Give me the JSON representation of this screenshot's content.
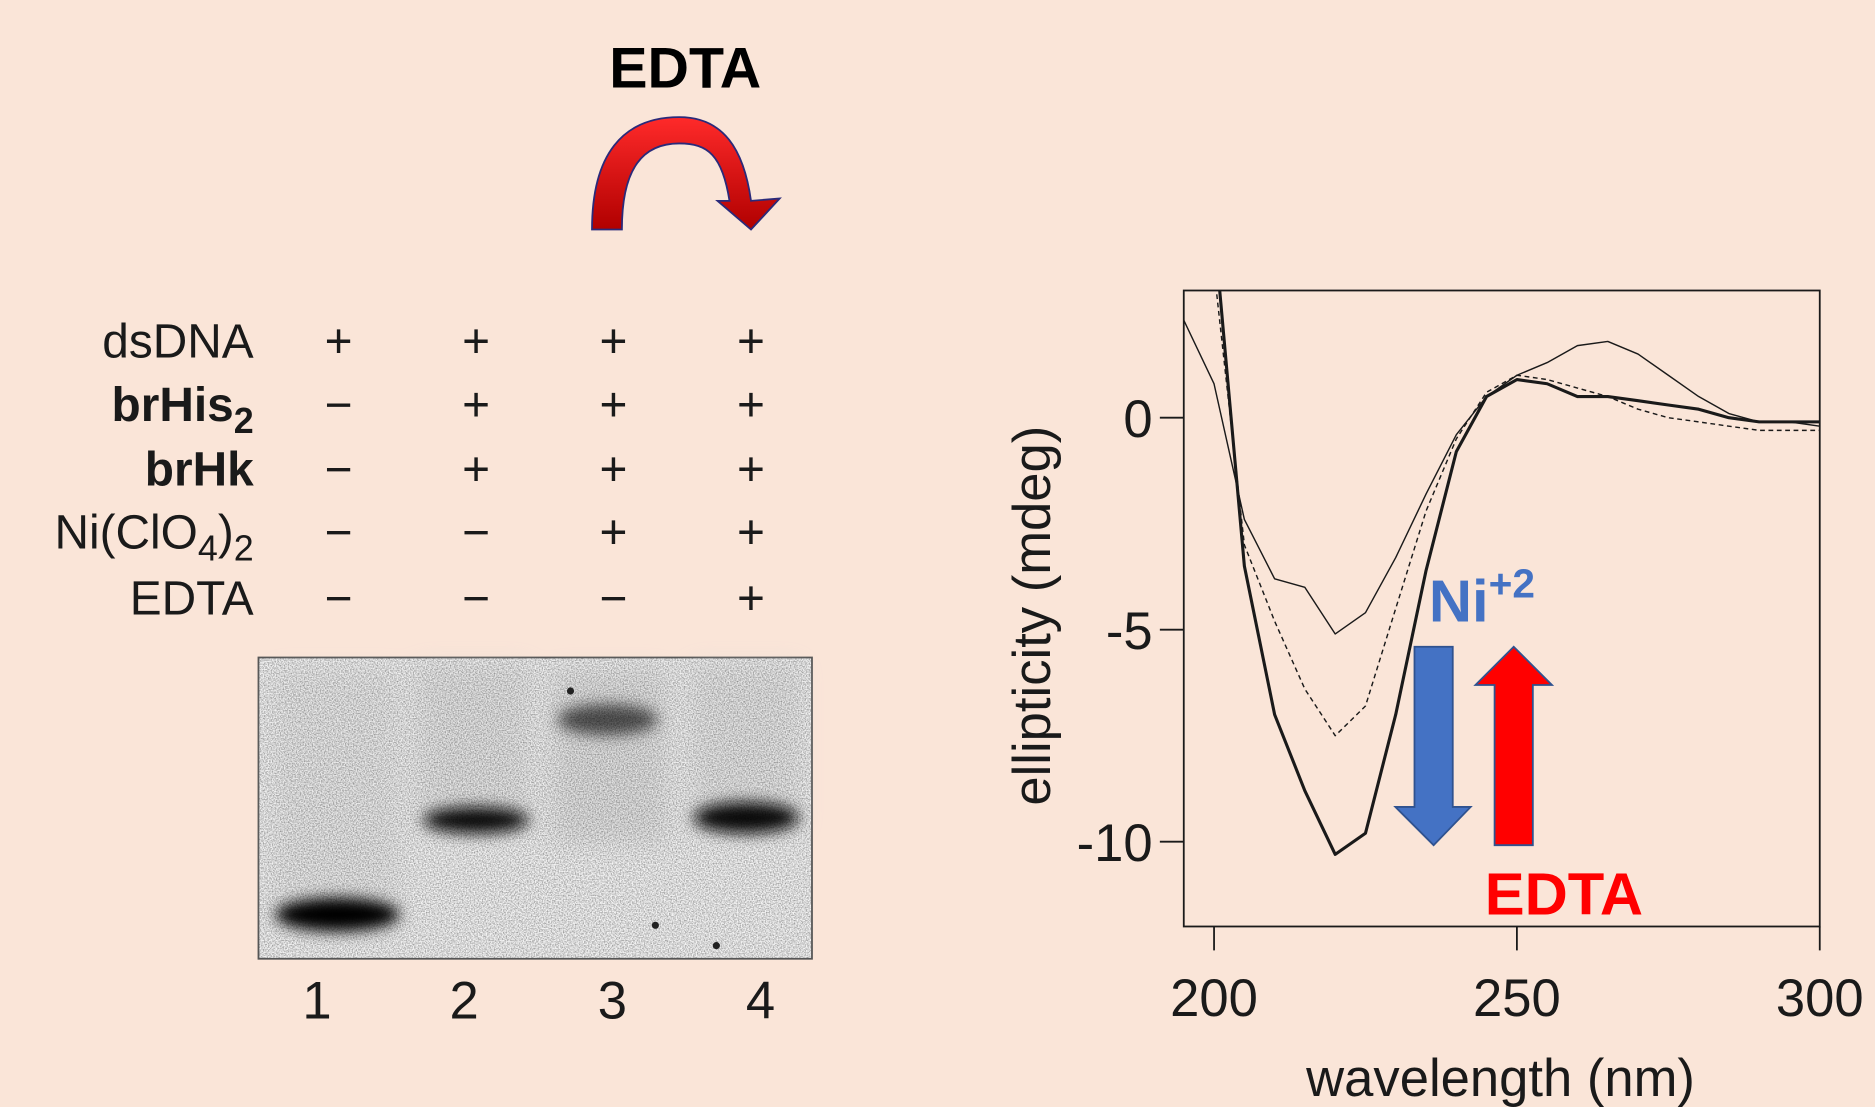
{
  "gel": {
    "header": "EDTA",
    "rows": [
      {
        "label": [
          {
            "text": "dsDNA"
          }
        ],
        "bold": false,
        "lanes": [
          "+",
          "+",
          "+",
          "+"
        ]
      },
      {
        "label": [
          {
            "text": "brHis"
          },
          {
            "text": "2",
            "sub": true
          }
        ],
        "bold": true,
        "lanes": [
          "−",
          "+",
          "+",
          "+"
        ]
      },
      {
        "label": [
          {
            "text": "brHk"
          }
        ],
        "bold": true,
        "lanes": [
          "−",
          "+",
          "+",
          "+"
        ]
      },
      {
        "label": [
          {
            "text": "Ni(ClO"
          },
          {
            "text": "4",
            "sub": true
          },
          {
            "text": ")"
          },
          {
            "text": "2",
            "sub": true
          }
        ],
        "bold": false,
        "lanes": [
          "−",
          "−",
          "+",
          "+"
        ]
      },
      {
        "label": [
          {
            "text": "EDTA"
          }
        ],
        "bold": false,
        "lanes": [
          "−",
          "−",
          "−",
          "+"
        ]
      }
    ],
    "lane_numbers": [
      "1",
      "2",
      "3",
      "4"
    ]
  },
  "chart_data": {
    "type": "line",
    "x_label": "wavelength (nm)",
    "y_label": "ellipticity (mdeg)",
    "xlim": [
      195,
      300
    ],
    "ylim": [
      -12,
      3
    ],
    "xticks": [
      200,
      250,
      300
    ],
    "yticks": [
      0,
      -5,
      -10
    ],
    "grid": false,
    "x": [
      195,
      200,
      205,
      210,
      215,
      220,
      225,
      230,
      235,
      240,
      245,
      250,
      255,
      260,
      265,
      270,
      275,
      280,
      285,
      290,
      295,
      300
    ],
    "series": [
      {
        "color": "#1a1a1a",
        "width": 1.2,
        "dash": false,
        "values": [
          2.3,
          0.8,
          -2.4,
          -3.8,
          -4.0,
          -5.1,
          -4.6,
          -3.3,
          -1.8,
          -0.4,
          0.5,
          1.0,
          1.3,
          1.7,
          1.8,
          1.5,
          1.0,
          0.5,
          0.1,
          -0.1,
          -0.1,
          -0.2
        ]
      },
      {
        "color": "#1a1a1a",
        "width": 1.2,
        "dash": true,
        "values": [
          null,
          3.5,
          -3.0,
          -4.8,
          -6.4,
          -7.5,
          -6.8,
          -4.5,
          -2.2,
          -0.5,
          0.6,
          1.0,
          0.9,
          0.7,
          0.5,
          0.2,
          0.0,
          -0.1,
          -0.2,
          -0.3,
          -0.3,
          -0.3
        ]
      },
      {
        "color": "#1a1a1a",
        "width": 2.6,
        "dash": false,
        "values": [
          null,
          4.5,
          -3.5,
          -7.0,
          -8.8,
          -10.3,
          -9.8,
          -7.0,
          -3.6,
          -0.8,
          0.5,
          0.9,
          0.8,
          0.5,
          0.5,
          0.4,
          0.3,
          0.2,
          0.0,
          -0.1,
          -0.1,
          -0.1
        ]
      }
    ],
    "annotations": [
      {
        "text": "Ni",
        "superscript": "+2",
        "color": "#4472c4"
      },
      {
        "text": "EDTA",
        "color": "#ff0000"
      }
    ]
  }
}
